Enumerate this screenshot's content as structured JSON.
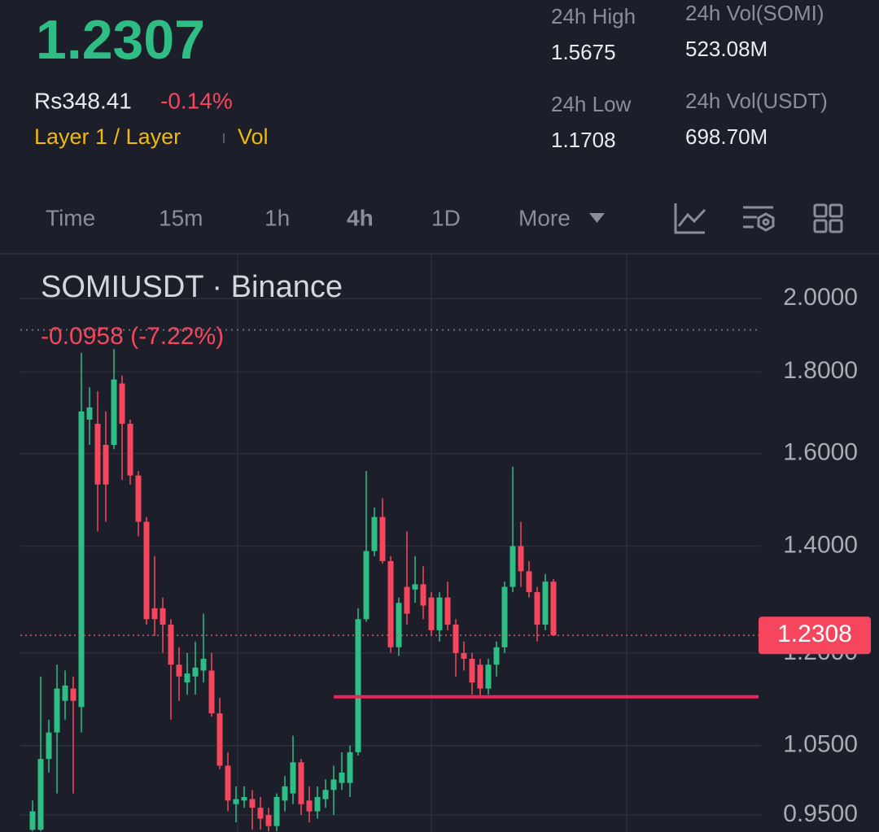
{
  "header": {
    "price": "1.2307",
    "fiat_price": "Rs348.41",
    "change": "-0.14%",
    "category": "Layer 1 / Layer",
    "vol_link": "Vol",
    "stats": [
      {
        "label": "24h High",
        "value": "1.5675"
      },
      {
        "label": "24h Low",
        "value": "1.1708"
      },
      {
        "label": "24h Vol(SOMI)",
        "value": "523.08M"
      },
      {
        "label": "24h Vol(USDT)",
        "value": "698.70M"
      }
    ]
  },
  "tabs": [
    "Time",
    "15m",
    "1h",
    "4h",
    "1D",
    "More"
  ],
  "active_tab": 3,
  "chart_data": {
    "type": "candlestick",
    "title": "SOMIUSDT · Binance",
    "subtitle": "-0.0958 (-7.22%)",
    "up_color": "#2ebd85",
    "down_color": "#f6465d",
    "log_scale": true,
    "grid": true,
    "ylim": [
      0.927,
      2.134
    ],
    "yticks": [
      {
        "value": 2.0,
        "label": "2.0000"
      },
      {
        "value": 1.8,
        "label": "1.8000"
      },
      {
        "value": 1.6,
        "label": "1.6000"
      },
      {
        "value": 1.4,
        "label": "1.4000"
      },
      {
        "value": 1.2,
        "label": "1.2000"
      },
      {
        "value": 1.05,
        "label": "1.0500"
      },
      {
        "value": 0.95,
        "label": "0.9500"
      }
    ],
    "open": [
      0.93,
      0.93,
      1.03,
      1.07,
      1.12,
      1.14,
      1.11,
      1.68,
      1.67,
      1.62,
      1.62,
      1.77,
      1.67,
      1.55,
      1.45,
      1.28,
      1.28,
      1.25,
      1.18,
      1.15,
      1.16,
      1.17,
      1.17,
      1.1,
      1.02,
      0.965,
      0.97,
      0.972,
      0.96,
      0.95,
      0.935,
      0.97,
      0.98,
      1.025,
      0.97,
      0.955,
      0.972,
      0.985,
      0.995,
      0.995,
      1.04,
      1.26,
      1.39,
      1.46,
      1.37,
      1.21,
      1.32,
      1.315,
      1.325,
      1.3,
      1.24,
      1.3,
      1.25,
      1.2,
      1.19,
      1.18,
      1.14,
      1.18,
      1.21,
      1.32,
      1.4,
      1.35,
      1.31,
      1.25,
      1.33
    ],
    "high": [
      0.97,
      1.16,
      1.09,
      1.18,
      1.17,
      1.16,
      1.85,
      1.76,
      1.75,
      1.7,
      1.86,
      1.79,
      1.68,
      1.56,
      1.46,
      1.38,
      1.3,
      1.26,
      1.21,
      1.2,
      1.22,
      1.27,
      1.2,
      1.125,
      1.04,
      0.99,
      0.99,
      0.985,
      0.975,
      0.96,
      0.98,
      1.005,
      1.065,
      1.03,
      0.99,
      0.99,
      1.0,
      1.02,
      1.04,
      1.05,
      1.28,
      1.56,
      1.48,
      1.5,
      1.38,
      1.3,
      1.43,
      1.38,
      1.36,
      1.31,
      1.31,
      1.33,
      1.26,
      1.22,
      1.2,
      1.19,
      1.19,
      1.22,
      1.33,
      1.57,
      1.45,
      1.37,
      1.32,
      1.345,
      1.335
    ],
    "low": [
      0.928,
      0.928,
      1.01,
      0.98,
      1.09,
      0.98,
      1.07,
      1.62,
      1.43,
      1.45,
      1.61,
      1.54,
      1.53,
      1.42,
      1.25,
      1.23,
      1.2,
      1.09,
      1.12,
      1.13,
      1.13,
      1.15,
      1.095,
      1.015,
      0.955,
      0.94,
      0.96,
      0.93,
      0.93,
      0.928,
      0.928,
      0.955,
      0.965,
      0.95,
      0.94,
      0.945,
      0.96,
      0.95,
      0.985,
      0.975,
      1.035,
      1.255,
      1.38,
      1.365,
      1.2,
      1.195,
      1.25,
      1.29,
      1.26,
      1.23,
      1.22,
      1.24,
      1.16,
      1.17,
      1.13,
      1.125,
      1.13,
      1.16,
      1.2,
      1.31,
      1.32,
      1.3,
      1.22,
      1.24,
      1.23
    ],
    "close": [
      0.955,
      1.03,
      1.07,
      1.14,
      1.145,
      1.12,
      1.7,
      1.71,
      1.53,
      1.53,
      1.78,
      1.67,
      1.55,
      1.45,
      1.26,
      1.26,
      1.25,
      1.18,
      1.16,
      1.165,
      1.175,
      1.19,
      1.1,
      1.02,
      0.97,
      0.972,
      0.975,
      0.96,
      0.945,
      0.935,
      0.975,
      0.99,
      1.025,
      0.965,
      0.955,
      0.975,
      0.985,
      1.0,
      1.01,
      1.04,
      1.26,
      1.39,
      1.46,
      1.37,
      1.21,
      1.29,
      1.27,
      1.325,
      1.285,
      1.24,
      1.3,
      1.25,
      1.2,
      1.19,
      1.15,
      1.14,
      1.18,
      1.21,
      1.32,
      1.4,
      1.35,
      1.31,
      1.25,
      1.33,
      1.2308
    ],
    "last_price": 1.2308,
    "reference_line": 1.912,
    "drawn_line": 1.1265,
    "drawn_line_color": "#f0245c"
  }
}
